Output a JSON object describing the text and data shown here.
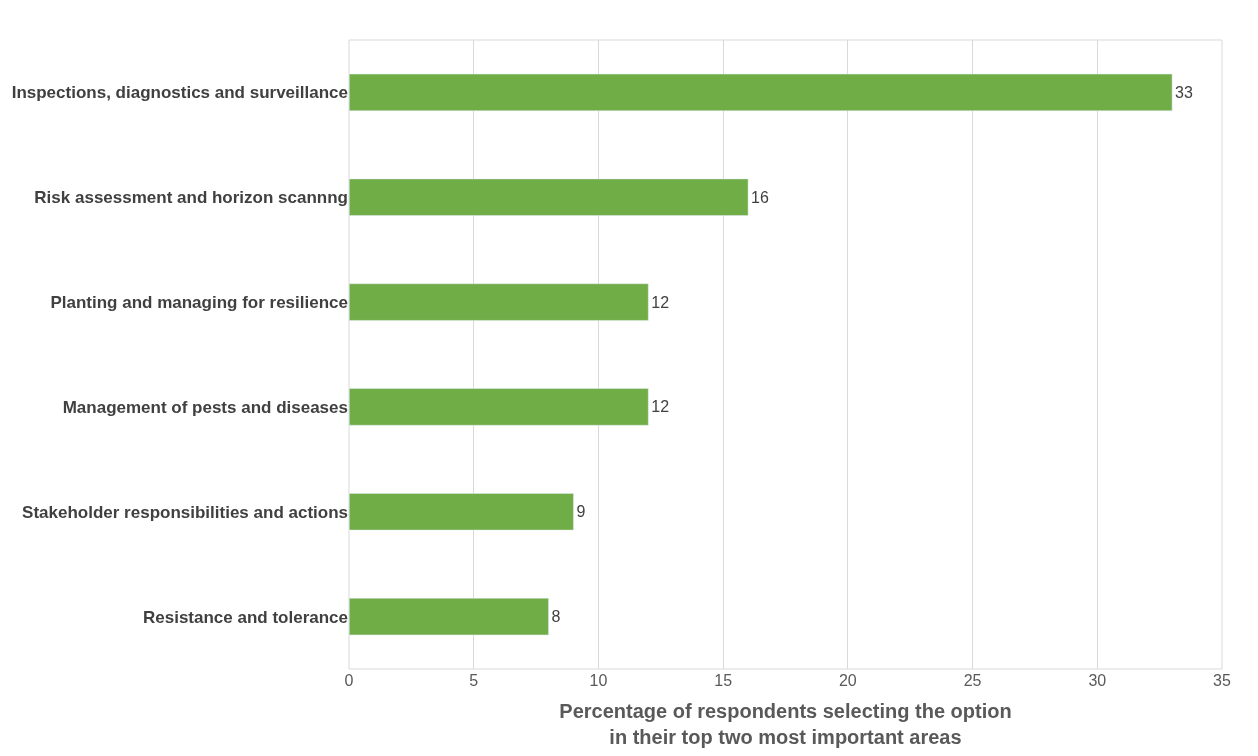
{
  "chart_data": {
    "type": "bar",
    "orientation": "horizontal",
    "categories": [
      "Inspections, diagnostics and surveillance",
      "Risk assessment and horizon scannng",
      "Planting and managing for resilience",
      "Management of pests and diseases",
      "Stakeholder responsibilities and actions",
      "Resistance and tolerance"
    ],
    "values": [
      33,
      16,
      12,
      12,
      9,
      8
    ],
    "color": "#70ad47",
    "xlabel": "Percentage of respondents selecting the option\nin their top two most important areas",
    "xlim": [
      0,
      35
    ],
    "xticks": [
      0,
      5,
      10,
      15,
      20,
      25,
      30,
      35
    ],
    "grid": "x",
    "data_labels": true,
    "legend": false
  }
}
